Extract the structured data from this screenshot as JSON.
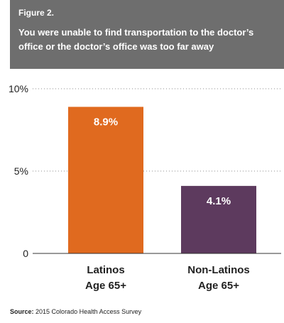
{
  "figure_label": "Figure 2.",
  "title": "You were unable to find transportation to the doctor’s office or the doctor’s office was too far away",
  "source_prefix": "Source:",
  "source_text": "2015 Colorado Health Access Survey",
  "chart_data": {
    "type": "bar",
    "categories": [
      [
        "Latinos",
        "Age 65+"
      ],
      [
        "Non-Latinos",
        "Age 65+"
      ]
    ],
    "values": [
      8.9,
      4.1
    ],
    "value_labels": [
      "8.9%",
      "4.1%"
    ],
    "colors": [
      "#e06a1f",
      "#5d3a5e"
    ],
    "ylim": [
      0,
      10
    ],
    "yticks": [
      0,
      5,
      10
    ],
    "ytick_labels": [
      "0",
      "5%",
      "10%"
    ],
    "grid": true,
    "xlabel": "",
    "ylabel": ""
  }
}
